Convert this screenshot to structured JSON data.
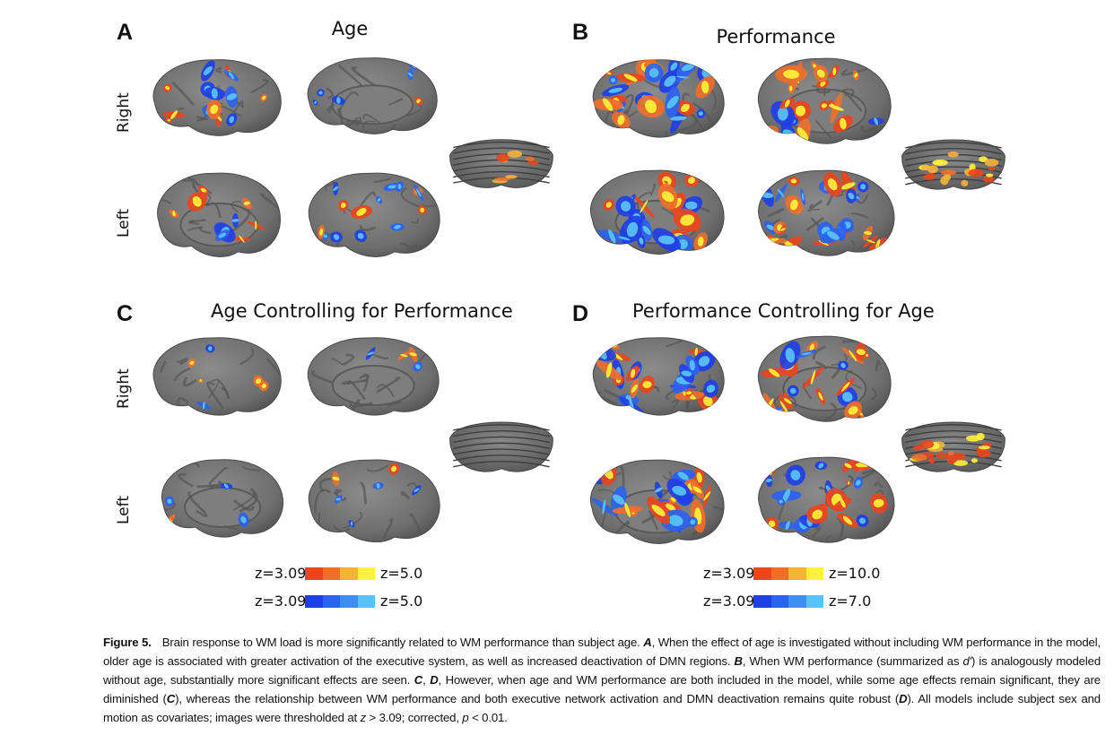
{
  "panels": [
    {
      "letter": "A",
      "title": "Age"
    },
    {
      "letter": "B",
      "title": "Performance"
    },
    {
      "letter": "C",
      "title": "Age Controlling for Performance"
    },
    {
      "letter": "D",
      "title": "Performance Controlling for Age"
    }
  ],
  "hemisphere_labels": {
    "right": "Right",
    "left": "Left"
  },
  "scales": {
    "age": {
      "pos_min": "z=3.09",
      "pos_max": "z=5.0",
      "neg_min": "z=3.09",
      "neg_max": "z=5.0"
    },
    "performance": {
      "pos_min": "z=3.09",
      "pos_max": "z=10.0",
      "neg_min": "z=3.09",
      "neg_max": "z=7.0"
    },
    "pos_colors": [
      "#e8461e",
      "#ef6f2a",
      "#f5b33a",
      "#fff23a"
    ],
    "neg_colors": [
      "#1f3fe6",
      "#2d62ee",
      "#3c8ef2",
      "#58c3f6"
    ]
  },
  "caption": {
    "figure_label": "Figure 5.",
    "s1": "Brain response to WM load is more significantly related to WM performance than subject age. ",
    "a": "A",
    "s2": ", When the effect of age is investigated without including WM performance in the model, older age is associated with greater activation of the executive system, as well as increased deactivation of DMN regions. ",
    "b": "B",
    "s3": ", When WM performance (summarized as ",
    "dprime": "d′",
    "s4": ") is analogously modeled without age, substantially more significant effects are seen. ",
    "c": "C",
    "comma": ", ",
    "d": "D",
    "s5": ", However, when age and WM performance are both included in the model, while some age effects remain significant, they are diminished (",
    "c2": "C",
    "s6": "), whereas the relationship between WM performance and both executive network activation and DMN deactivation remains quite robust (",
    "d2": "D",
    "s7": "). All models include subject sex and motion as covariates; images were thresholded at ",
    "z": "z",
    "s8": " > 3.09; corrected, ",
    "p": "p",
    "s9": " < 0.01."
  }
}
